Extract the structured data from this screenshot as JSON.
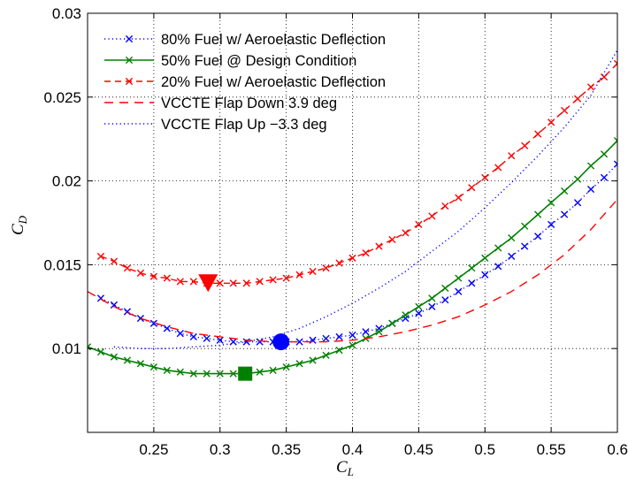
{
  "chart_data": {
    "type": "line",
    "xlabel": "C_L",
    "ylabel": "C_D",
    "xlim": [
      0.2,
      0.6
    ],
    "ylim": [
      0.005,
      0.03
    ],
    "x_ticks": [
      "0.25",
      "0.3",
      "0.35",
      "0.4",
      "0.45",
      "0.5",
      "0.55",
      "0.6"
    ],
    "y_ticks": [
      "0.01",
      "0.015",
      "0.02",
      "0.025",
      "0.03"
    ],
    "grid": true,
    "legend_position": "top-left",
    "series": [
      {
        "name": "80% Fuel w/ Aeroelastic Deflection",
        "color": "#0000ff",
        "line_style": "dotted",
        "marker": "x",
        "x": [
          0.21,
          0.22,
          0.23,
          0.24,
          0.25,
          0.26,
          0.27,
          0.28,
          0.29,
          0.3,
          0.31,
          0.32,
          0.33,
          0.34,
          0.35,
          0.36,
          0.37,
          0.38,
          0.39,
          0.4,
          0.41,
          0.42,
          0.43,
          0.44,
          0.45,
          0.46,
          0.47,
          0.48,
          0.49,
          0.5,
          0.51,
          0.52,
          0.53,
          0.54,
          0.55,
          0.56,
          0.57,
          0.58,
          0.59,
          0.6
        ],
        "y": [
          0.013,
          0.0126,
          0.0122,
          0.0118,
          0.0115,
          0.0112,
          0.0109,
          0.0107,
          0.0106,
          0.0105,
          0.0104,
          0.0104,
          0.0104,
          0.0104,
          0.0104,
          0.0104,
          0.0105,
          0.0106,
          0.0107,
          0.0108,
          0.011,
          0.0112,
          0.0115,
          0.0118,
          0.0121,
          0.0125,
          0.0129,
          0.0134,
          0.0139,
          0.0144,
          0.0149,
          0.0155,
          0.0161,
          0.0167,
          0.0174,
          0.018,
          0.0187,
          0.0195,
          0.0202,
          0.021
        ]
      },
      {
        "name": "50% Fuel @ Design Condition",
        "color": "#008000",
        "line_style": "solid",
        "marker": "x",
        "x": [
          0.2,
          0.21,
          0.22,
          0.23,
          0.24,
          0.25,
          0.26,
          0.27,
          0.28,
          0.29,
          0.3,
          0.31,
          0.32,
          0.33,
          0.34,
          0.35,
          0.36,
          0.37,
          0.38,
          0.39,
          0.4,
          0.41,
          0.42,
          0.43,
          0.44,
          0.45,
          0.46,
          0.47,
          0.48,
          0.49,
          0.5,
          0.51,
          0.52,
          0.53,
          0.54,
          0.55,
          0.56,
          0.57,
          0.58,
          0.59,
          0.6
        ],
        "y": [
          0.0101,
          0.0098,
          0.0095,
          0.0093,
          0.0091,
          0.0089,
          0.0087,
          0.0086,
          0.0085,
          0.0085,
          0.0085,
          0.0085,
          0.0085,
          0.0086,
          0.0087,
          0.0089,
          0.0091,
          0.0093,
          0.0096,
          0.0099,
          0.0102,
          0.0106,
          0.011,
          0.0115,
          0.012,
          0.0125,
          0.013,
          0.0136,
          0.0142,
          0.0148,
          0.0154,
          0.016,
          0.0166,
          0.0173,
          0.018,
          0.0187,
          0.0194,
          0.0201,
          0.0209,
          0.0216,
          0.0224
        ]
      },
      {
        "name": "20% Fuel w/ Aeroelastic Deflection",
        "color": "#ff0000",
        "line_style": "dashed",
        "marker": "x",
        "x": [
          0.21,
          0.22,
          0.23,
          0.24,
          0.25,
          0.26,
          0.27,
          0.28,
          0.29,
          0.3,
          0.31,
          0.32,
          0.33,
          0.34,
          0.35,
          0.36,
          0.37,
          0.38,
          0.39,
          0.4,
          0.41,
          0.42,
          0.43,
          0.44,
          0.45,
          0.46,
          0.47,
          0.48,
          0.49,
          0.5,
          0.51,
          0.52,
          0.53,
          0.54,
          0.55,
          0.56,
          0.57,
          0.58,
          0.59,
          0.6
        ],
        "y": [
          0.0155,
          0.0152,
          0.0148,
          0.0145,
          0.0143,
          0.0142,
          0.014,
          0.014,
          0.0139,
          0.0139,
          0.0139,
          0.0139,
          0.014,
          0.0141,
          0.0142,
          0.0144,
          0.0146,
          0.0148,
          0.0151,
          0.0154,
          0.0157,
          0.0161,
          0.0165,
          0.0169,
          0.0174,
          0.0179,
          0.0185,
          0.019,
          0.0196,
          0.0202,
          0.0208,
          0.0215,
          0.0221,
          0.0228,
          0.0235,
          0.0242,
          0.0249,
          0.0256,
          0.0262,
          0.027
        ]
      },
      {
        "name": "VCCTE Flap Down 3.9 deg",
        "color": "#ff0000",
        "line_style": "dashed-long",
        "marker": "none",
        "x": [
          0.2,
          0.22,
          0.24,
          0.26,
          0.28,
          0.3,
          0.32,
          0.34,
          0.36,
          0.38,
          0.4,
          0.42,
          0.44,
          0.46,
          0.48,
          0.5,
          0.52,
          0.54,
          0.56,
          0.58,
          0.6
        ],
        "y": [
          0.0134,
          0.0125,
          0.0118,
          0.0113,
          0.0109,
          0.0107,
          0.0105,
          0.0104,
          0.0104,
          0.0104,
          0.0105,
          0.0107,
          0.011,
          0.0114,
          0.0119,
          0.0126,
          0.0134,
          0.0144,
          0.0156,
          0.0171,
          0.0189
        ]
      },
      {
        "name": "VCCTE Flap Up −3.3 deg",
        "color": "#0000ff",
        "line_style": "dotted",
        "marker": "none",
        "x": [
          0.22,
          0.24,
          0.26,
          0.28,
          0.3,
          0.32,
          0.34,
          0.36,
          0.38,
          0.4,
          0.42,
          0.44,
          0.46,
          0.48,
          0.5,
          0.52,
          0.54,
          0.56,
          0.58,
          0.6
        ],
        "y": [
          0.0101,
          0.01,
          0.01,
          0.0101,
          0.0102,
          0.0104,
          0.0107,
          0.0112,
          0.0119,
          0.0127,
          0.0136,
          0.0146,
          0.0158,
          0.017,
          0.0184,
          0.0199,
          0.0215,
          0.0232,
          0.0251,
          0.0278
        ]
      }
    ],
    "special_markers": [
      {
        "shape": "triangle-down",
        "color": "#ff0000",
        "x": 0.291,
        "y": 0.0139
      },
      {
        "shape": "circle",
        "color": "#0000ff",
        "x": 0.346,
        "y": 0.0104
      },
      {
        "shape": "square",
        "color": "#008000",
        "x": 0.319,
        "y": 0.0085
      }
    ]
  }
}
